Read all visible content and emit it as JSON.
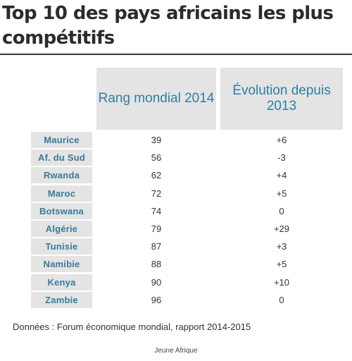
{
  "title": "Top 10 des pays africains les plus compétitifs",
  "headers": {
    "rank": "Rang mondial 2014",
    "evolution_line1": "Évolution depuis",
    "evolution_line2": "2013"
  },
  "chart_data": {
    "type": "table",
    "title": "Top 10 des pays africains les plus compétitifs",
    "columns": [
      "",
      "Rang mondial 2014",
      "Évolution depuis 2013"
    ],
    "rows": [
      {
        "country": "Maurice",
        "rank": "39",
        "evolution": "+6"
      },
      {
        "country": "Af. du Sud",
        "rank": "56",
        "evolution": "-3"
      },
      {
        "country": "Rwanda",
        "rank": "62",
        "evolution": "+4"
      },
      {
        "country": "Maroc",
        "rank": "72",
        "evolution": "+5"
      },
      {
        "country": "Botswana",
        "rank": "74",
        "evolution": "0"
      },
      {
        "country": "Algérie",
        "rank": "79",
        "evolution": "+29"
      },
      {
        "country": "Tunisie",
        "rank": "87",
        "evolution": "+3"
      },
      {
        "country": "Namibie",
        "rank": "88",
        "evolution": "+5"
      },
      {
        "country": "Kenya",
        "rank": "90",
        "evolution": "+10"
      },
      {
        "country": "Zambie",
        "rank": "96",
        "evolution": "0"
      }
    ]
  },
  "source": "Données : Forum économique mondial, rapport 2014-2015",
  "credit": "Jeune Afrique",
  "colors": {
    "header_text": "#2e7fa3",
    "country_text": "#3a7a99",
    "cell_background": "#e4e4e4",
    "rule": "#3a3a3a"
  }
}
